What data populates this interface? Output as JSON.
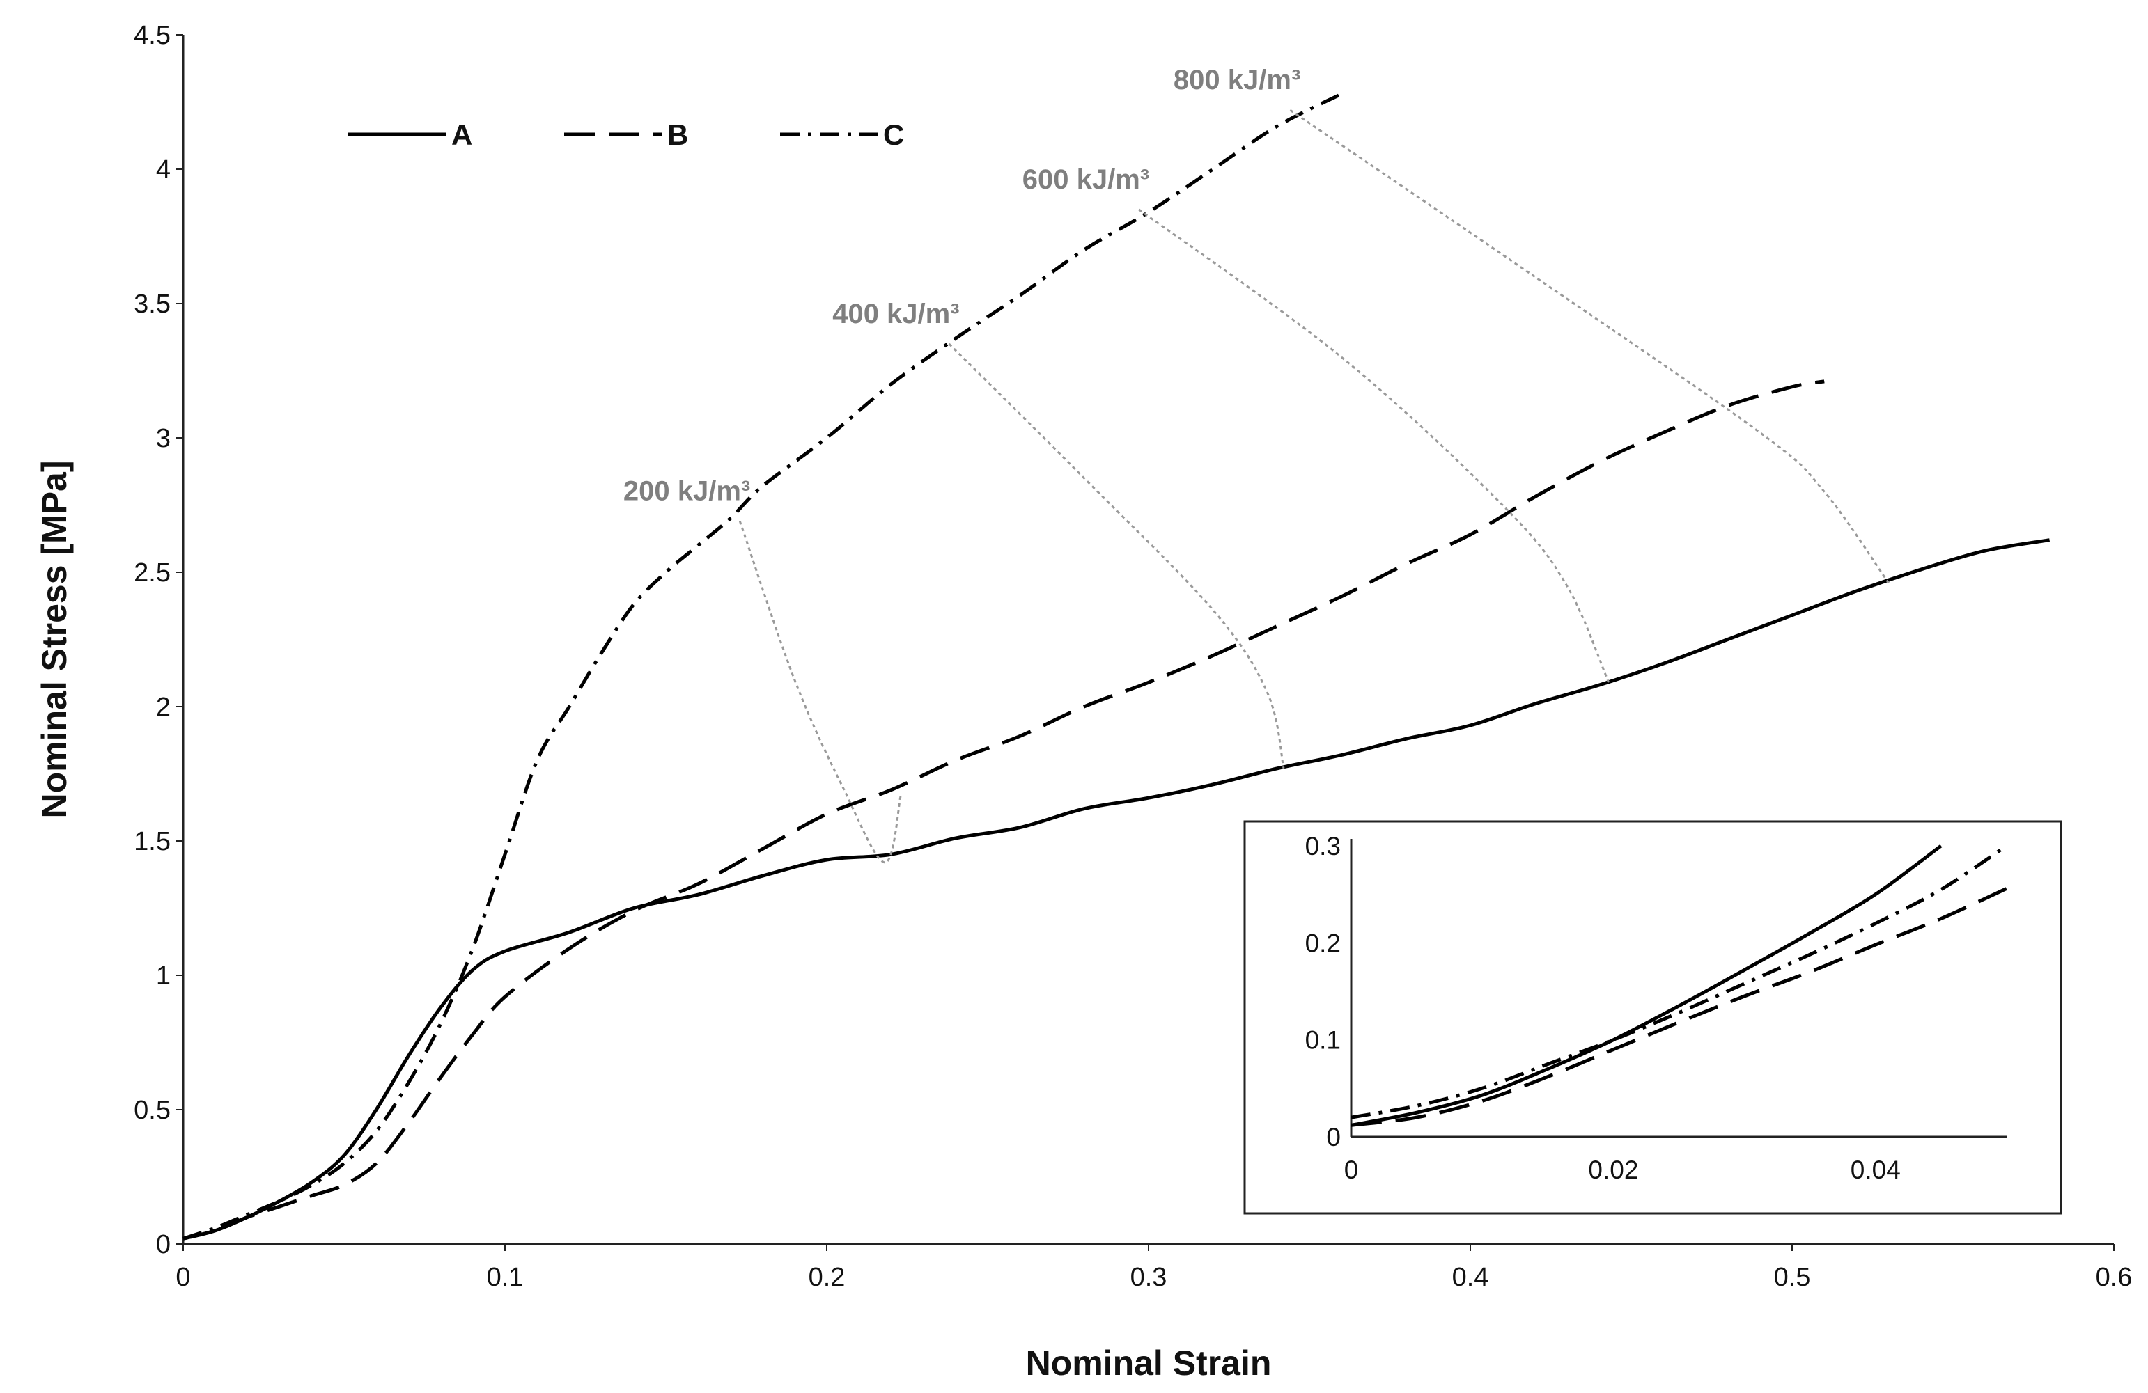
{
  "chart_data": [
    {
      "type": "line",
      "title": "",
      "xlabel": "Nominal Strain",
      "ylabel": "Nominal Stress [MPa]",
      "xlim": [
        0,
        0.6
      ],
      "ylim": [
        0,
        4.5
      ],
      "grid": false,
      "legend": "top-left",
      "x_ticks": [
        {
          "value": 0,
          "label": "0"
        },
        {
          "value": 0.1,
          "label": "0.1"
        },
        {
          "value": 0.2,
          "label": "0.2"
        },
        {
          "value": 0.3,
          "label": "0.3"
        },
        {
          "value": 0.4,
          "label": "0.4"
        },
        {
          "value": 0.5,
          "label": "0.5"
        },
        {
          "value": 0.6,
          "label": "0.6"
        }
      ],
      "y_ticks": [
        {
          "value": 0,
          "label": "0"
        },
        {
          "value": 0.5,
          "label": "0.5"
        },
        {
          "value": 1,
          "label": "1"
        },
        {
          "value": 1.5,
          "label": "1.5"
        },
        {
          "value": 2,
          "label": "2"
        },
        {
          "value": 2.5,
          "label": "2.5"
        },
        {
          "value": 3,
          "label": "3"
        },
        {
          "value": 3.5,
          "label": "3.5"
        },
        {
          "value": 4,
          "label": "4"
        },
        {
          "value": 4.5,
          "label": "4.5"
        }
      ],
      "series": [
        {
          "name": "A",
          "dash": "solid",
          "x": [
            0,
            0.01,
            0.02,
            0.03,
            0.04,
            0.05,
            0.06,
            0.07,
            0.08,
            0.09,
            0.1,
            0.12,
            0.14,
            0.16,
            0.18,
            0.2,
            0.22,
            0.24,
            0.26,
            0.28,
            0.3,
            0.32,
            0.34,
            0.36,
            0.38,
            0.4,
            0.42,
            0.44,
            0.46,
            0.48,
            0.5,
            0.52,
            0.54,
            0.56,
            0.58
          ],
          "y": [
            0.02,
            0.05,
            0.1,
            0.16,
            0.23,
            0.33,
            0.5,
            0.7,
            0.88,
            1.02,
            1.09,
            1.16,
            1.25,
            1.3,
            1.37,
            1.43,
            1.45,
            1.51,
            1.55,
            1.62,
            1.66,
            1.71,
            1.77,
            1.82,
            1.88,
            1.93,
            2.01,
            2.08,
            2.16,
            2.25,
            2.34,
            2.43,
            2.51,
            2.58,
            2.62
          ]
        },
        {
          "name": "B",
          "dash": "dashed",
          "x": [
            0,
            0.01,
            0.02,
            0.03,
            0.04,
            0.05,
            0.06,
            0.07,
            0.08,
            0.09,
            0.1,
            0.12,
            0.14,
            0.16,
            0.18,
            0.2,
            0.22,
            0.24,
            0.26,
            0.28,
            0.3,
            0.32,
            0.34,
            0.36,
            0.38,
            0.4,
            0.42,
            0.44,
            0.46,
            0.48,
            0.5,
            0.51
          ],
          "y": [
            0.02,
            0.05,
            0.1,
            0.14,
            0.18,
            0.22,
            0.3,
            0.45,
            0.62,
            0.78,
            0.92,
            1.1,
            1.24,
            1.34,
            1.47,
            1.6,
            1.69,
            1.8,
            1.89,
            2.0,
            2.09,
            2.19,
            2.3,
            2.41,
            2.53,
            2.64,
            2.78,
            2.91,
            3.02,
            3.12,
            3.19,
            3.21
          ]
        },
        {
          "name": "C",
          "dash": "dash-dot",
          "x": [
            0,
            0.01,
            0.02,
            0.03,
            0.04,
            0.05,
            0.06,
            0.07,
            0.08,
            0.09,
            0.1,
            0.11,
            0.12,
            0.13,
            0.14,
            0.15,
            0.16,
            0.17,
            0.18,
            0.2,
            0.22,
            0.24,
            0.26,
            0.28,
            0.3,
            0.32,
            0.34,
            0.36
          ],
          "y": [
            0.02,
            0.06,
            0.11,
            0.16,
            0.22,
            0.3,
            0.42,
            0.6,
            0.82,
            1.1,
            1.45,
            1.8,
            2.0,
            2.2,
            2.38,
            2.5,
            2.6,
            2.7,
            2.82,
            3.0,
            3.2,
            3.37,
            3.53,
            3.7,
            3.84,
            4.0,
            4.16,
            4.28
          ]
        }
      ],
      "energy_contours": [
        {
          "label": "200 kJ/m³",
          "points": [
            [
              0.173,
              2.69
            ],
            [
              0.19,
              2.1
            ],
            [
              0.205,
              1.7
            ],
            [
              0.218,
              1.42
            ],
            [
              0.223,
              1.67
            ]
          ]
        },
        {
          "label": "400 kJ/m³",
          "points": [
            [
              0.238,
              3.35
            ],
            [
              0.28,
              2.85
            ],
            [
              0.32,
              2.36
            ],
            [
              0.337,
              2.05
            ],
            [
              0.342,
              1.77
            ]
          ]
        },
        {
          "label": "600 kJ/m³",
          "points": [
            [
              0.297,
              3.85
            ],
            [
              0.36,
              3.3
            ],
            [
              0.41,
              2.75
            ],
            [
              0.43,
              2.45
            ],
            [
              0.443,
              2.09
            ]
          ]
        },
        {
          "label": "800 kJ/m³",
          "points": [
            [
              0.344,
              4.22
            ],
            [
              0.42,
              3.6
            ],
            [
              0.49,
              3.02
            ],
            [
              0.51,
              2.8
            ],
            [
              0.53,
              2.46
            ]
          ]
        }
      ],
      "legend_entries": [
        "A",
        "B",
        "C"
      ]
    },
    {
      "type": "line",
      "title": "inset",
      "xlabel": "",
      "ylabel": "",
      "xlim": [
        0,
        0.05
      ],
      "ylim": [
        0,
        0.3
      ],
      "grid": false,
      "x_ticks": [
        {
          "value": 0,
          "label": "0"
        },
        {
          "value": 0.02,
          "label": "0.02"
        },
        {
          "value": 0.04,
          "label": "0.04"
        }
      ],
      "y_ticks": [
        {
          "value": 0,
          "label": "0"
        },
        {
          "value": 0.1,
          "label": "0.1"
        },
        {
          "value": 0.2,
          "label": "0.2"
        },
        {
          "value": 0.3,
          "label": "0.3"
        }
      ],
      "series": [
        {
          "name": "A",
          "dash": "solid",
          "x": [
            0,
            0.005,
            0.01,
            0.015,
            0.02,
            0.025,
            0.03,
            0.035,
            0.04,
            0.045
          ],
          "y": [
            0.012,
            0.025,
            0.043,
            0.07,
            0.1,
            0.135,
            0.172,
            0.21,
            0.25,
            0.3
          ]
        },
        {
          "name": "B",
          "dash": "dashed",
          "x": [
            0,
            0.005,
            0.01,
            0.015,
            0.02,
            0.025,
            0.03,
            0.035,
            0.04,
            0.045,
            0.05
          ],
          "y": [
            0.012,
            0.02,
            0.037,
            0.062,
            0.09,
            0.118,
            0.145,
            0.17,
            0.198,
            0.225,
            0.256
          ]
        },
        {
          "name": "C",
          "dash": "dash-dot",
          "x": [
            0,
            0.005,
            0.01,
            0.015,
            0.02,
            0.025,
            0.03,
            0.035,
            0.04,
            0.045,
            0.05
          ],
          "y": [
            0.02,
            0.032,
            0.05,
            0.075,
            0.1,
            0.128,
            0.158,
            0.188,
            0.22,
            0.255,
            0.3
          ]
        }
      ]
    }
  ]
}
